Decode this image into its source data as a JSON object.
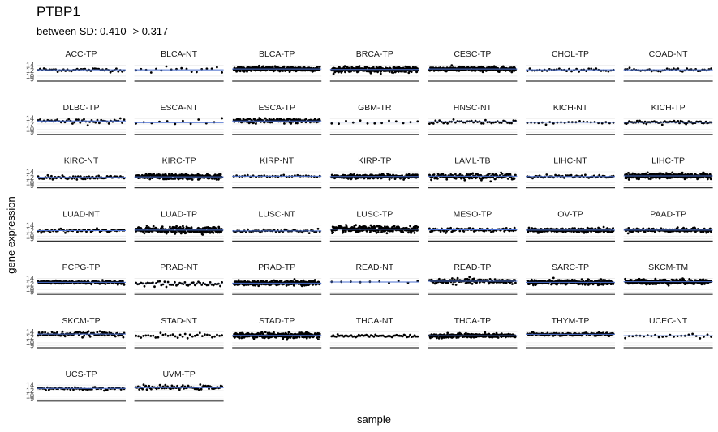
{
  "chart_data": {
    "type": "scatter",
    "title": "PTBP1",
    "subtitle": "between SD: 0.410 -> 0.317",
    "xlabel": "sample",
    "ylabel": "gene expression",
    "ylim": [
      8.5,
      15
    ],
    "y_ticks": [
      9,
      10,
      12,
      14
    ],
    "y_tick_labels": [
      "9",
      "10",
      "12",
      "14"
    ],
    "panels": [
      {
        "label": "ACC-TP",
        "center": 12.3,
        "spread": 0.35,
        "n": 45
      },
      {
        "label": "BLCA-NT",
        "center": 12.3,
        "spread": 0.6,
        "n": 18
      },
      {
        "label": "BLCA-TP",
        "center": 12.6,
        "spread": 0.45,
        "n": 280
      },
      {
        "label": "BRCA-TP",
        "center": 12.4,
        "spread": 0.45,
        "n": 320
      },
      {
        "label": "CESC-TP",
        "center": 12.6,
        "spread": 0.4,
        "n": 280
      },
      {
        "label": "CHOL-TP",
        "center": 12.3,
        "spread": 0.3,
        "n": 36
      },
      {
        "label": "COAD-NT",
        "center": 12.3,
        "spread": 0.3,
        "n": 40
      },
      {
        "label": "DLBC-TP",
        "center": 13.1,
        "spread": 0.4,
        "n": 46
      },
      {
        "label": "ESCA-NT",
        "center": 12.5,
        "spread": 0.5,
        "n": 12
      },
      {
        "label": "ESCA-TP",
        "center": 13.1,
        "spread": 0.45,
        "n": 180
      },
      {
        "label": "GBM-TR",
        "center": 12.7,
        "spread": 0.6,
        "n": 13
      },
      {
        "label": "HNSC-NT",
        "center": 12.8,
        "spread": 0.4,
        "n": 44
      },
      {
        "label": "KICH-NT",
        "center": 12.6,
        "spread": 0.3,
        "n": 24
      },
      {
        "label": "KICH-TP",
        "center": 12.6,
        "spread": 0.3,
        "n": 66
      },
      {
        "label": "KIRC-NT",
        "center": 12.0,
        "spread": 0.3,
        "n": 72
      },
      {
        "label": "KIRC-TP",
        "center": 12.2,
        "spread": 0.45,
        "n": 280
      },
      {
        "label": "KIRP-NT",
        "center": 12.4,
        "spread": 0.2,
        "n": 32
      },
      {
        "label": "KIRP-TP",
        "center": 12.3,
        "spread": 0.35,
        "n": 260
      },
      {
        "label": "LAML-TB",
        "center": 12.4,
        "spread": 0.5,
        "n": 150
      },
      {
        "label": "LIHC-NT",
        "center": 12.3,
        "spread": 0.3,
        "n": 50
      },
      {
        "label": "LIHC-TP",
        "center": 12.5,
        "spread": 0.45,
        "n": 300
      },
      {
        "label": "LUAD-NT",
        "center": 12.0,
        "spread": 0.3,
        "n": 58
      },
      {
        "label": "LUAD-TP",
        "center": 12.2,
        "spread": 0.55,
        "n": 300
      },
      {
        "label": "LUSC-NT",
        "center": 11.9,
        "spread": 0.35,
        "n": 50
      },
      {
        "label": "LUSC-TP",
        "center": 12.5,
        "spread": 0.55,
        "n": 300
      },
      {
        "label": "MESO-TP",
        "center": 12.3,
        "spread": 0.35,
        "n": 86
      },
      {
        "label": "OV-TP",
        "center": 12.2,
        "spread": 0.4,
        "n": 260
      },
      {
        "label": "PAAD-TP",
        "center": 12.2,
        "spread": 0.35,
        "n": 178
      },
      {
        "label": "PCPG-TP",
        "center": 12.6,
        "spread": 0.3,
        "n": 180
      },
      {
        "label": "PRAD-NT",
        "center": 12.0,
        "spread": 0.45,
        "n": 52
      },
      {
        "label": "PRAD-TP",
        "center": 12.3,
        "spread": 0.4,
        "n": 300
      },
      {
        "label": "READ-NT",
        "center": 12.7,
        "spread": 0.3,
        "n": 10
      },
      {
        "label": "READ-TP",
        "center": 13.0,
        "spread": 0.45,
        "n": 160
      },
      {
        "label": "SARC-TP",
        "center": 12.6,
        "spread": 0.45,
        "n": 260
      },
      {
        "label": "SKCM-TM",
        "center": 12.8,
        "spread": 0.45,
        "n": 300
      },
      {
        "label": "SKCM-TP",
        "center": 13.2,
        "spread": 0.4,
        "n": 100
      },
      {
        "label": "STAD-NT",
        "center": 12.5,
        "spread": 0.45,
        "n": 36
      },
      {
        "label": "STAD-TP",
        "center": 12.7,
        "spread": 0.5,
        "n": 300
      },
      {
        "label": "THCA-NT",
        "center": 12.5,
        "spread": 0.25,
        "n": 58
      },
      {
        "label": "THCA-TP",
        "center": 12.6,
        "spread": 0.35,
        "n": 300
      },
      {
        "label": "THYM-TP",
        "center": 13.1,
        "spread": 0.3,
        "n": 120
      },
      {
        "label": "UCEC-NT",
        "center": 12.6,
        "spread": 0.35,
        "n": 24
      },
      {
        "label": "UCS-TP",
        "center": 12.8,
        "spread": 0.35,
        "n": 57
      },
      {
        "label": "UVM-TP",
        "center": 13.1,
        "spread": 0.35,
        "n": 80
      }
    ]
  },
  "colors": {
    "point": "#000000",
    "median_line": "#4a6fd1",
    "grid": "#ebebeb",
    "axis": "#333333",
    "strip_text": "#1a1a1a"
  }
}
